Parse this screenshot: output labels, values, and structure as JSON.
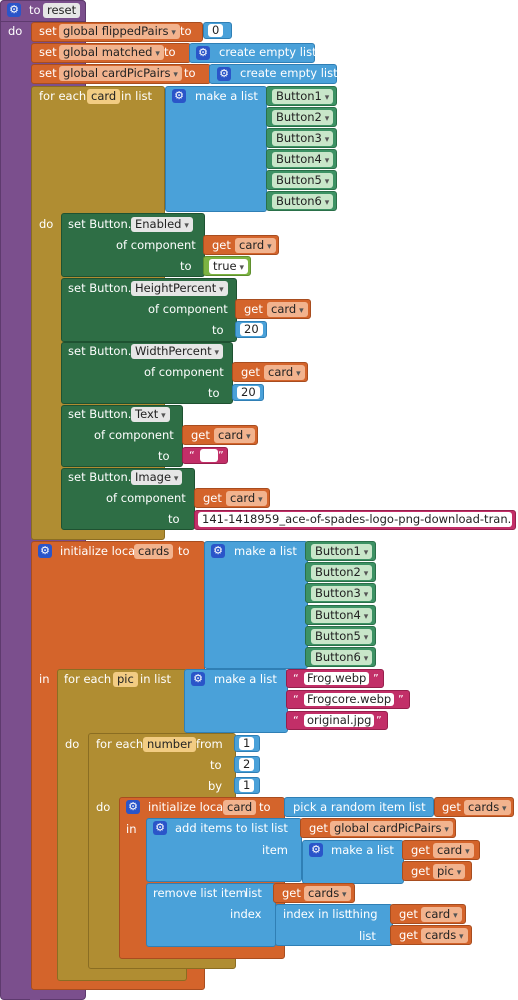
{
  "proc": {
    "to": "to",
    "name": "reset",
    "do": "do"
  },
  "set1": {
    "set": "set",
    "var": "global flippedPairs",
    "to": "to",
    "val": "0"
  },
  "set2": {
    "set": "set",
    "var": "global matched",
    "to": "to",
    "op": "create empty list"
  },
  "set3": {
    "set": "set",
    "var": "global cardPicPairs",
    "to": "to",
    "op": "create empty list"
  },
  "foreach1": {
    "for_each": "for each",
    "var": "card",
    "in_list": "in list",
    "make_list": "make a list",
    "do": "do",
    "items": [
      "Button1",
      "Button2",
      "Button3",
      "Button4",
      "Button5",
      "Button6"
    ]
  },
  "props": {
    "set_button": "set Button.",
    "of_component": "of component",
    "to": "to",
    "get": "get",
    "card": "card",
    "enabled": "Enabled",
    "true": "true",
    "height": "HeightPercent",
    "height_val": "20",
    "width": "WidthPercent",
    "width_val": "20",
    "text": "Text",
    "image": "Image",
    "image_val": "141-1418959_ace-of-spades-logo-png-download-tran..."
  },
  "init": {
    "label": "initialize local",
    "var": "cards",
    "to": "to",
    "make_list": "make a list",
    "in": "in",
    "items": [
      "Button1",
      "Button2",
      "Button3",
      "Button4",
      "Button5",
      "Button6"
    ]
  },
  "foreach2": {
    "for_each": "for each",
    "var": "pic",
    "in_list": "in list",
    "make_list": "make a list",
    "do": "do",
    "items": [
      "Frog.webp",
      "Frogcore.webp",
      "original.jpg"
    ]
  },
  "fornum": {
    "for_each": "for each",
    "var": "number",
    "from": "from",
    "to": "to",
    "by": "by",
    "do": "do",
    "from_val": "1",
    "to_val": "2",
    "by_val": "1"
  },
  "init2": {
    "label": "initialize local",
    "var": "card",
    "to": "to",
    "pick": "pick a random item  list",
    "get": "get",
    "list_var": "cards",
    "in": "in"
  },
  "add": {
    "label": "add items to list",
    "list": "list",
    "get": "get",
    "list_var": "global cardPicPairs",
    "item": "item",
    "make_list": "make a list",
    "v1": "card",
    "v2": "pic"
  },
  "remove": {
    "label": "remove list item",
    "list": "list",
    "get": "get",
    "list_var": "cards",
    "index": "index",
    "index_in_list": "index in list",
    "thing": "thing",
    "thing_var": "card",
    "list_label": "list",
    "list_var2": "cards"
  }
}
